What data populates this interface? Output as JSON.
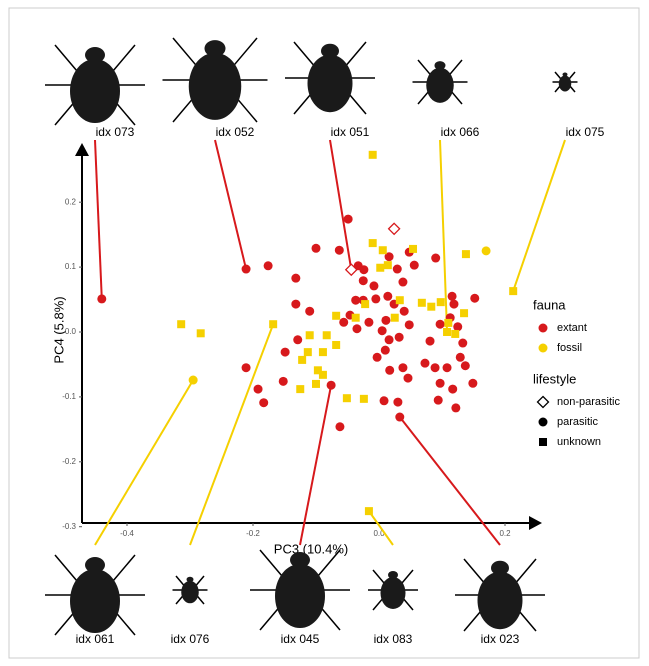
{
  "chart_data": {
    "type": "scatter",
    "xlabel": "PC3 (10.4%)",
    "ylabel": "PC4 (5.8%)",
    "xlim": [
      -0.47,
      0.26
    ],
    "ylim": [
      -0.3,
      0.29
    ],
    "xticks": [
      -0.4,
      -0.2,
      {
        "value": 0,
        "label": "0.0"
      },
      0.2
    ],
    "yticks": [
      0.2,
      0.1,
      {
        "value": 0,
        "label": "0.0"
      },
      -0.1,
      -0.2,
      -0.3
    ],
    "legend": {
      "groups": [
        {
          "title": "fauna",
          "items": [
            {
              "name": "extant",
              "color": "#d7191c"
            },
            {
              "name": "fossil",
              "color": "#f5d000"
            }
          ]
        },
        {
          "title": "lifestyle",
          "items": [
            {
              "name": "non-parasitic",
              "shape": "diamond"
            },
            {
              "name": "parasitic",
              "shape": "circle"
            },
            {
              "name": "unknown",
              "shape": "square"
            }
          ]
        }
      ]
    },
    "series": [
      {
        "fauna": 0,
        "lifestyle": 1,
        "x": [
          -0.049,
          -0.1,
          -0.063,
          -0.176,
          -0.132,
          -0.132,
          -0.11,
          -0.033,
          -0.024,
          -0.025,
          -0.008,
          0.016,
          0.029,
          0.048,
          0.056,
          0.038,
          0.014,
          -0.005,
          -0.025,
          -0.037,
          -0.046,
          -0.056,
          -0.035,
          -0.016,
          0.005,
          0.011,
          0.024,
          0.04,
          0.048,
          0.032,
          0.016,
          0.01,
          -0.003,
          0.017,
          0.038,
          0.046,
          0.008,
          0.03,
          0.09,
          0.116,
          0.119,
          0.113,
          0.097,
          0.125,
          0.152,
          0.133,
          0.129,
          0.108,
          0.081,
          0.073,
          0.089,
          0.097,
          0.094,
          0.117,
          0.137,
          0.149,
          0.122,
          -0.129,
          -0.149,
          -0.211,
          -0.192,
          -0.183,
          -0.152,
          -0.062
        ],
        "y": [
          0.174,
          0.129,
          0.126,
          0.102,
          0.083,
          0.043,
          0.032,
          0.102,
          0.096,
          0.079,
          0.071,
          0.116,
          0.097,
          0.123,
          0.103,
          0.077,
          0.055,
          0.051,
          0.049,
          0.049,
          0.026,
          0.015,
          0.005,
          0.015,
          0.002,
          0.018,
          0.043,
          0.032,
          0.011,
          -0.008,
          -0.012,
          -0.028,
          -0.039,
          -0.059,
          -0.055,
          -0.071,
          -0.106,
          -0.108,
          0.114,
          0.055,
          0.043,
          0.022,
          0.012,
          0.008,
          0.052,
          -0.017,
          -0.039,
          -0.055,
          -0.014,
          -0.048,
          -0.055,
          -0.079,
          -0.105,
          -0.088,
          -0.052,
          -0.079,
          -0.117,
          -0.012,
          -0.031,
          -0.055,
          -0.088,
          -0.109,
          -0.076,
          -0.146
        ]
      },
      {
        "fauna": 0,
        "lifestyle": 0,
        "x": [
          0.024
        ],
        "y": [
          0.159
        ]
      },
      {
        "fauna": 1,
        "lifestyle": 1,
        "x": [
          0.17
        ],
        "y": [
          0.125
        ]
      },
      {
        "fauna": 1,
        "lifestyle": 2,
        "x": [
          -0.01,
          -0.01,
          0.006,
          0.014,
          0.054,
          0.002,
          0.138,
          -0.022,
          -0.037,
          -0.068,
          -0.083,
          -0.068,
          -0.089,
          -0.089,
          -0.1,
          -0.122,
          -0.11,
          -0.097,
          -0.113,
          -0.125,
          -0.314,
          -0.283,
          -0.051,
          -0.024,
          0.033,
          0.025,
          0.068,
          0.083,
          0.098,
          0.11,
          0.121,
          0.135
        ],
        "y": [
          0.273,
          0.137,
          0.126,
          0.103,
          0.128,
          0.099,
          0.12,
          0.043,
          0.022,
          0.025,
          -0.005,
          -0.02,
          -0.031,
          -0.066,
          -0.08,
          -0.043,
          -0.005,
          -0.059,
          -0.031,
          -0.088,
          0.012,
          -0.002,
          -0.102,
          -0.103,
          0.049,
          0.022,
          0.045,
          0.039,
          0.046,
          0.014,
          -0.003,
          0.029
        ]
      }
    ],
    "annotations": [
      {
        "label": "idx 073",
        "x": -0.44,
        "y": 0.051,
        "fauna": 0,
        "lifestyle": 1
      },
      {
        "label": "idx 052",
        "x": -0.211,
        "y": 0.097,
        "fauna": 0,
        "lifestyle": 1
      },
      {
        "label": "idx 051",
        "x": -0.044,
        "y": 0.096,
        "fauna": 0,
        "lifestyle": 0
      },
      {
        "label": "idx 066",
        "x": 0.108,
        "y": 0.0,
        "fauna": 1,
        "lifestyle": 2
      },
      {
        "label": "idx 075",
        "x": 0.213,
        "y": 0.063,
        "fauna": 1,
        "lifestyle": 2
      },
      {
        "label": "idx 061",
        "x": -0.295,
        "y": -0.074,
        "fauna": 1,
        "lifestyle": 1
      },
      {
        "label": "idx 076",
        "x": -0.168,
        "y": 0.012,
        "fauna": 1,
        "lifestyle": 2
      },
      {
        "label": "idx 045",
        "x": -0.076,
        "y": -0.082,
        "fauna": 0,
        "lifestyle": 1
      },
      {
        "label": "idx 083",
        "x": -0.016,
        "y": -0.276,
        "fauna": 1,
        "lifestyle": 2
      },
      {
        "label": "idx 023",
        "x": 0.033,
        "y": -0.131,
        "fauna": 0,
        "lifestyle": 1
      }
    ]
  }
}
